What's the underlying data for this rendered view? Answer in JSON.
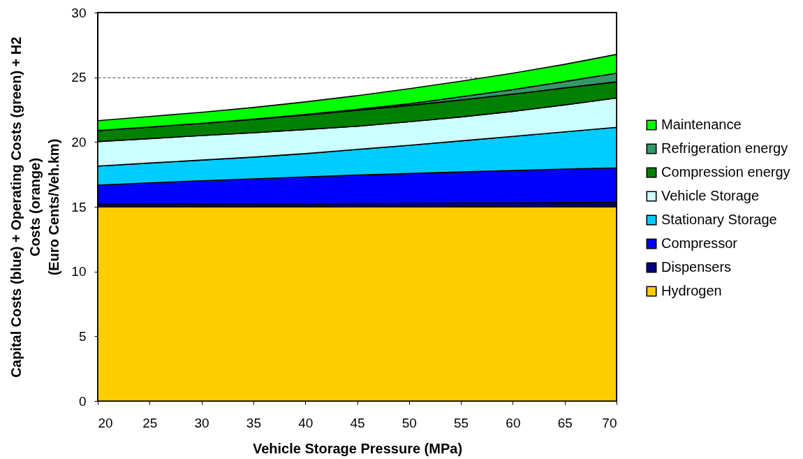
{
  "chart_data": {
    "type": "area",
    "stacked": true,
    "xlabel": "Vehicle Storage Pressure (MPa)",
    "ylabel": "Capital Costs (blue) + Operating Costs (green) + H2 Costs (orange)\n(Euro Cents/Veh.km)",
    "x": [
      20,
      25,
      30,
      35,
      40,
      45,
      50,
      55,
      60,
      65,
      70
    ],
    "series": [
      {
        "name": "Hydrogen",
        "color": "#ffcc00",
        "values": [
          15,
          15,
          15,
          15,
          15,
          15,
          15,
          15,
          15,
          15,
          15
        ]
      },
      {
        "name": "Dispensers",
        "color": "#000080",
        "values": [
          0.2,
          0.21,
          0.22,
          0.23,
          0.24,
          0.25,
          0.27,
          0.29,
          0.3,
          0.32,
          0.35
        ]
      },
      {
        "name": "Compressor",
        "color": "#0000ff",
        "values": [
          1.47,
          1.64,
          1.79,
          1.93,
          2.07,
          2.2,
          2.3,
          2.4,
          2.5,
          2.59,
          2.66
        ]
      },
      {
        "name": "Stationary Storage",
        "color": "#00ccff",
        "values": [
          1.47,
          1.53,
          1.6,
          1.68,
          1.8,
          1.98,
          2.18,
          2.4,
          2.64,
          2.88,
          3.13
        ]
      },
      {
        "name": "Vehicle Storage",
        "color": "#ccffff",
        "values": [
          1.9,
          1.89,
          1.89,
          1.88,
          1.86,
          1.79,
          1.82,
          1.85,
          1.93,
          2.08,
          2.26
        ]
      },
      {
        "name": "Compression energy",
        "color": "#008000",
        "values": [
          0.85,
          0.89,
          0.94,
          1.03,
          1.11,
          1.23,
          1.26,
          1.31,
          1.33,
          1.31,
          1.25
        ]
      },
      {
        "name": "Refrigeration energy",
        "color": "#339966",
        "values": [
          0,
          0,
          0.01,
          0.02,
          0.05,
          0.07,
          0.12,
          0.25,
          0.35,
          0.5,
          0.67
        ]
      },
      {
        "name": "Maintenance",
        "color": "#00ff00",
        "values": [
          0.76,
          0.81,
          0.85,
          0.9,
          0.97,
          1.06,
          1.17,
          1.2,
          1.27,
          1.32,
          1.45
        ]
      }
    ],
    "xlim": [
      20,
      70
    ],
    "xticks": [
      20,
      25,
      30,
      35,
      40,
      45,
      50,
      55,
      60,
      65,
      70
    ],
    "ylim": [
      0,
      30
    ],
    "yticks": [
      0,
      5,
      10,
      15,
      20,
      25,
      30
    ],
    "grid": "y",
    "legend": "right"
  }
}
